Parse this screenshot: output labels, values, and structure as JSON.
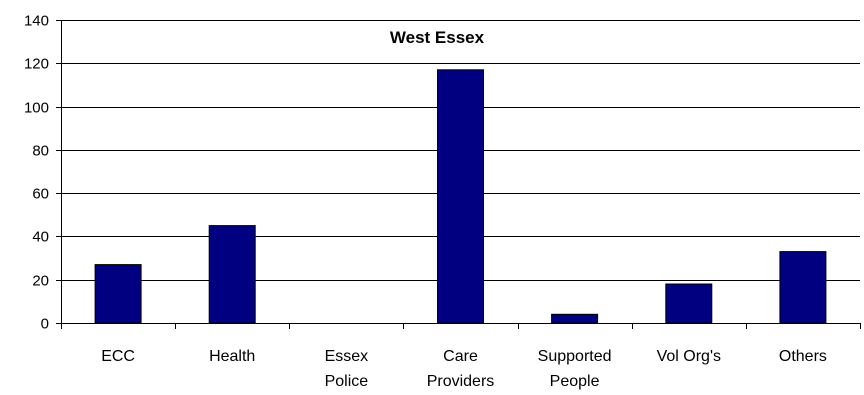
{
  "chart_data": {
    "type": "bar",
    "title": "West Essex",
    "xlabel": "",
    "ylabel": "",
    "categories": [
      [
        "ECC"
      ],
      [
        "Health"
      ],
      [
        "Essex",
        "Police"
      ],
      [
        "Care",
        "Providers"
      ],
      [
        "Supported",
        "People"
      ],
      [
        "Vol Org's"
      ],
      [
        "Others"
      ]
    ],
    "values": [
      27,
      45,
      0,
      117,
      4,
      18,
      33
    ],
    "ylim": [
      0,
      140
    ],
    "yticks": [
      0,
      20,
      40,
      60,
      80,
      100,
      120,
      140
    ],
    "grid": true,
    "legend": "none",
    "colors": {
      "bar": "#000080",
      "bar_stroke": "#000000",
      "grid": "#000000",
      "axis": "#000000"
    }
  }
}
